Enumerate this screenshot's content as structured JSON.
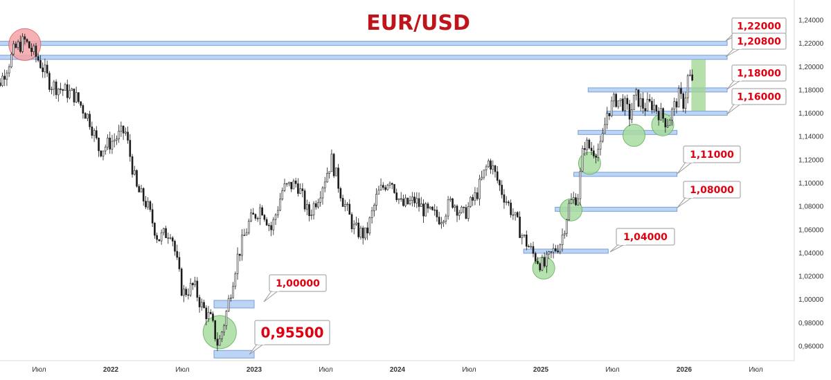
{
  "chart_data": {
    "type": "candlestick",
    "title": "EUR/USD",
    "xlabel": "",
    "ylabel": "",
    "ylim": [
      0.9474,
      1.2512
    ],
    "y_ticks": [
      "1,24000",
      "1,22000",
      "1,20000",
      "1,18000",
      "1,16000",
      "1,14000",
      "1,12000",
      "1,10000",
      "1,08000",
      "1,06000",
      "1,04000",
      "1,02000",
      "1,00000",
      "0,98000",
      "0,96000"
    ],
    "x_ticks": [
      {
        "label": "Июл",
        "t": 2021.5
      },
      {
        "label": "2022",
        "t": 2022.0
      },
      {
        "label": "Июл",
        "t": 2022.5
      },
      {
        "label": "2023",
        "t": 2023.0
      },
      {
        "label": "Июл",
        "t": 2023.5
      },
      {
        "label": "2024",
        "t": 2024.0
      },
      {
        "label": "Июл",
        "t": 2024.5
      },
      {
        "label": "2025",
        "t": 2025.0
      },
      {
        "label": "Июл",
        "t": 2025.5
      },
      {
        "label": "2026",
        "t": 2026.0
      },
      {
        "label": "Июл",
        "t": 2026.5
      }
    ],
    "price_path": [
      [
        2021.15,
        1.17
      ],
      [
        2021.24,
        1.19
      ],
      [
        2021.33,
        1.215
      ],
      [
        2021.4,
        1.222
      ],
      [
        2021.5,
        1.205
      ],
      [
        2021.58,
        1.185
      ],
      [
        2021.75,
        1.175
      ],
      [
        2021.85,
        1.155
      ],
      [
        2021.92,
        1.128
      ],
      [
        2022.0,
        1.135
      ],
      [
        2022.1,
        1.145
      ],
      [
        2022.18,
        1.095
      ],
      [
        2022.25,
        1.082
      ],
      [
        2022.33,
        1.052
      ],
      [
        2022.42,
        1.06
      ],
      [
        2022.5,
        1.005
      ],
      [
        2022.58,
        1.012
      ],
      [
        2022.63,
        0.995
      ],
      [
        2022.7,
        0.982
      ],
      [
        2022.75,
        0.96
      ],
      [
        2022.8,
        0.985
      ],
      [
        2022.88,
        1.035
      ],
      [
        2022.96,
        1.065
      ],
      [
        2023.05,
        1.08
      ],
      [
        2023.12,
        1.06
      ],
      [
        2023.2,
        1.095
      ],
      [
        2023.3,
        1.1
      ],
      [
        2023.38,
        1.072
      ],
      [
        2023.45,
        1.09
      ],
      [
        2023.54,
        1.12
      ],
      [
        2023.62,
        1.085
      ],
      [
        2023.7,
        1.06
      ],
      [
        2023.78,
        1.055
      ],
      [
        2023.86,
        1.09
      ],
      [
        2023.95,
        1.105
      ],
      [
        2024.03,
        1.08
      ],
      [
        2024.12,
        1.085
      ],
      [
        2024.2,
        1.075
      ],
      [
        2024.3,
        1.07
      ],
      [
        2024.38,
        1.085
      ],
      [
        2024.46,
        1.072
      ],
      [
        2024.55,
        1.09
      ],
      [
        2024.64,
        1.12
      ],
      [
        2024.72,
        1.095
      ],
      [
        2024.8,
        1.075
      ],
      [
        2024.87,
        1.055
      ],
      [
        2024.94,
        1.04
      ],
      [
        2025.02,
        1.028
      ],
      [
        2025.08,
        1.04
      ],
      [
        2025.14,
        1.05
      ],
      [
        2025.2,
        1.082
      ],
      [
        2025.26,
        1.09
      ],
      [
        2025.3,
        1.135
      ],
      [
        2025.36,
        1.128
      ],
      [
        2025.42,
        1.13
      ],
      [
        2025.46,
        1.16
      ],
      [
        2025.52,
        1.172
      ],
      [
        2025.58,
        1.168
      ],
      [
        2025.62,
        1.158
      ],
      [
        2025.66,
        1.175
      ],
      [
        2025.72,
        1.165
      ],
      [
        2025.78,
        1.168
      ],
      [
        2025.84,
        1.158
      ],
      [
        2025.88,
        1.152
      ],
      [
        2025.92,
        1.162
      ],
      [
        2025.96,
        1.175
      ],
      [
        2026.0,
        1.168
      ],
      [
        2026.03,
        1.195
      ],
      [
        2026.06,
        1.183
      ]
    ],
    "levels": [
      {
        "value": 1.22,
        "label": "1,22000"
      },
      {
        "value": 1.208,
        "label": "1,20800"
      },
      {
        "value": 1.18,
        "label": "1,18000"
      },
      {
        "value": 1.16,
        "label": "1,16000"
      },
      {
        "value": 1.11,
        "label": "1,11000"
      },
      {
        "value": 1.08,
        "label": "1,08000"
      },
      {
        "value": 1.04,
        "label": "1,04000"
      },
      {
        "value": 1.0,
        "label": "1,00000"
      },
      {
        "value": 0.955,
        "label": "0,95500"
      }
    ],
    "zones": [
      {
        "t0": 2021.18,
        "t1": 2026.3,
        "y": 1.22
      },
      {
        "t0": 2021.15,
        "t1": 2026.3,
        "y": 1.208
      },
      {
        "t0": 2025.33,
        "t1": 2026.3,
        "y": 1.18
      },
      {
        "t0": 2025.46,
        "t1": 2026.3,
        "y": 1.16
      },
      {
        "t0": 2025.26,
        "t1": 2025.95,
        "y": 1.1435
      },
      {
        "t0": 2025.23,
        "t1": 2025.95,
        "y": 1.1075
      },
      {
        "t0": 2025.1,
        "t1": 2025.95,
        "y": 1.0775
      },
      {
        "t0": 2024.88,
        "t1": 2025.47,
        "y": 1.0415
      },
      {
        "t0": 2022.72,
        "t1": 2023.0,
        "y": 0.996
      },
      {
        "t0": 2022.72,
        "t1": 2023.0,
        "y": 0.953
      }
    ],
    "markers": [
      {
        "t": 2021.4,
        "y": 1.219,
        "color": "red"
      },
      {
        "t": 2022.76,
        "y": 0.972,
        "color": "green"
      },
      {
        "t": 2025.02,
        "y": 1.027,
        "color": "green"
      },
      {
        "t": 2025.21,
        "y": 1.077,
        "color": "green"
      },
      {
        "t": 2025.34,
        "y": 1.117,
        "color": "green"
      },
      {
        "t": 2025.65,
        "y": 1.141,
        "color": "green"
      },
      {
        "t": 2025.85,
        "y": 1.15,
        "color": "green"
      }
    ],
    "target_zone": {
      "t0": 2026.05,
      "t1": 2026.15,
      "y0": 1.162,
      "y1": 1.206
    },
    "colors": {
      "title": "#c0141c",
      "callout_text": "#e00010",
      "zone_fill": "#bcd4f5",
      "zone_stroke": "#7a9fd4",
      "marker_green_fill": "#a8dca0",
      "marker_green_stroke": "#5fae58",
      "marker_red_fill": "#f4a4a8",
      "marker_red_stroke": "#dd5b62",
      "target_fill": "#9fd48f",
      "candle": "#1a1a1a"
    }
  }
}
